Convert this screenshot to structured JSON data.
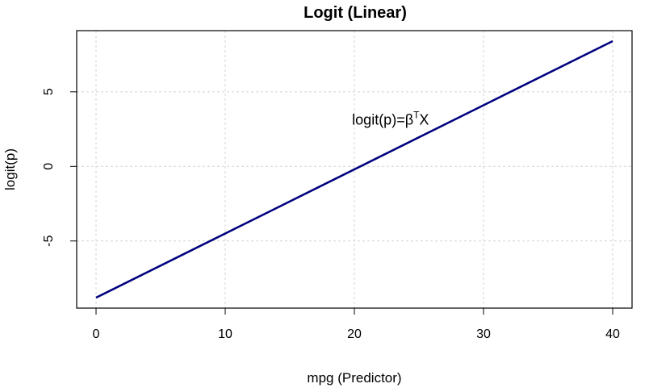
{
  "chart_data": {
    "type": "line",
    "title": "Logit (Linear)",
    "xlabel": "mpg (Predictor)",
    "ylabel": "logit(p)",
    "xlim": [
      -1.5,
      41.5
    ],
    "ylim": [
      -9.5,
      9.1
    ],
    "xticks": [
      0,
      10,
      20,
      30,
      40
    ],
    "yticks": [
      -5,
      0,
      5
    ],
    "grid": true,
    "series": [
      {
        "x": [
          0,
          40
        ],
        "y": [
          -8.8,
          8.4
        ],
        "color": "#00007f"
      }
    ],
    "annotation": {
      "text_base": "logit(p)=β",
      "text_sup": "T",
      "text_tail": "X",
      "x": 22.8,
      "y": 2.8
    }
  }
}
